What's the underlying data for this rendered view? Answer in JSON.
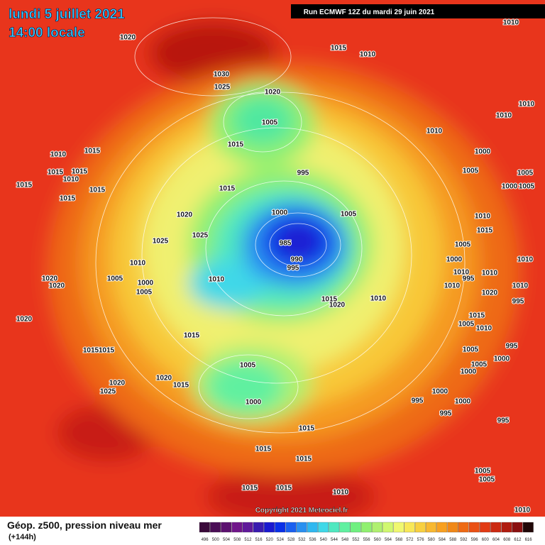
{
  "header": {
    "date": "lundi 5 juillet 2021",
    "time": "14:00 locale"
  },
  "run": "Run ECMWF 12Z du mardi 29 juin 2021",
  "copyright": "Copyright 2021 Meteociel.fr",
  "footer": {
    "title": "Géop. z500, pression niveau mer",
    "lead": "(+144h)"
  },
  "scale": {
    "labels": [
      496,
      500,
      504,
      508,
      512,
      516,
      520,
      524,
      528,
      532,
      536,
      540,
      544,
      548,
      552,
      556,
      560,
      564,
      568,
      572,
      576,
      580,
      584,
      588,
      592,
      596,
      600,
      604,
      608,
      612,
      616
    ],
    "colors": [
      "#3a0a3a",
      "#4a0e56",
      "#5c1270",
      "#70168a",
      "#601a9a",
      "#3a1cb0",
      "#1a1ad0",
      "#0a30e8",
      "#1a60f0",
      "#2a90f0",
      "#30b8f0",
      "#40d8e8",
      "#50e8c0",
      "#60f0a0",
      "#70f080",
      "#90f070",
      "#b0f070",
      "#d0f870",
      "#f0f870",
      "#f8e858",
      "#f8d040",
      "#f8b830",
      "#f8a020",
      "#f08818",
      "#ee6a14",
      "#ea5014",
      "#e23a14",
      "#cc2a12",
      "#b01c10",
      "#8a1010",
      "#200808"
    ]
  },
  "isobar_labels": [
    1020,
    1015,
    1010,
    1010,
    1030,
    1025,
    1020,
    1005,
    1015,
    1010,
    1010,
    1010,
    1010,
    1015,
    1000,
    995,
    1005,
    1005,
    1015,
    1015,
    1010,
    1015,
    1015,
    1015,
    1000,
    1005,
    1015,
    1020,
    1000,
    1005,
    1010,
    1015,
    1025,
    1025,
    985,
    1005,
    990,
    995,
    1010,
    1000,
    1010,
    1010,
    1010,
    1020,
    1020,
    1005,
    1010,
    1000,
    995,
    1005,
    1010,
    1020,
    1010,
    1015,
    1020,
    1010,
    995,
    1015,
    1020,
    1005,
    1010,
    1015,
    995,
    1015,
    1015,
    1005,
    1005,
    1000,
    1005,
    1020,
    1015,
    1000,
    1020,
    1025,
    1000,
    995,
    1000,
    1000,
    995,
    995,
    1015,
    1015,
    1015,
    1005,
    1005,
    1015,
    1015,
    1010,
    1010
  ]
}
